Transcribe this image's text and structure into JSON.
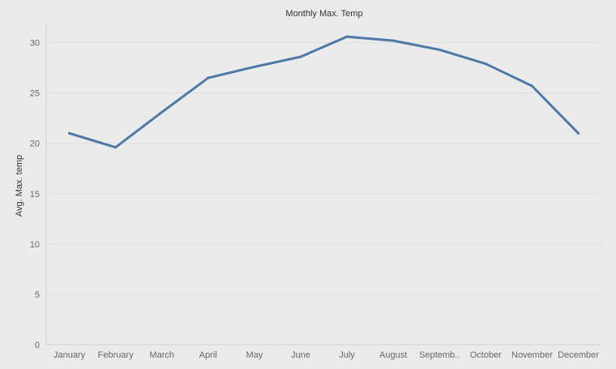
{
  "chart_data": {
    "type": "line",
    "title": "Monthly Max. Temp",
    "xlabel": "",
    "ylabel": "Avg. Max. temp",
    "categories": [
      "January",
      "February",
      "March",
      "April",
      "May",
      "June",
      "July",
      "August",
      "Septemb..",
      "October",
      "November",
      "December"
    ],
    "series": [
      {
        "values": [
          21.0,
          19.6,
          23.1,
          26.5,
          27.6,
          28.6,
          30.6,
          30.2,
          29.3,
          27.9,
          25.7,
          21.0
        ]
      }
    ],
    "yticks": [
      0,
      5,
      10,
      15,
      20,
      25,
      30
    ],
    "ylim": [
      0,
      31.5
    ],
    "grid": true,
    "line_color": "#4e79a7",
    "background_color": "#ebebeb"
  }
}
